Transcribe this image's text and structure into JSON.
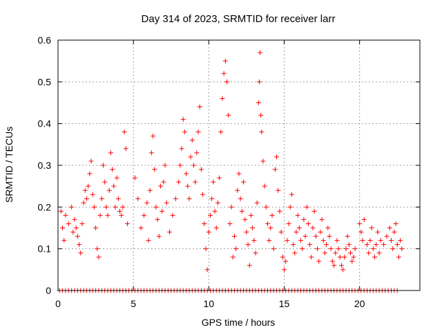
{
  "chart_data": {
    "type": "scatter",
    "title": "Day 314 of 2023, SRMTID for receiver larr",
    "xlabel": "GPS time / hours",
    "ylabel": "SRMTID / TECUs",
    "xlim": [
      0,
      24
    ],
    "ylim": [
      0,
      0.6
    ],
    "xticks": [
      0,
      5,
      10,
      15,
      20
    ],
    "xtick_labels": [
      "0",
      "5",
      "10",
      "15",
      "20"
    ],
    "yticks": [
      0,
      0.1,
      0.2,
      0.3,
      0.4,
      0.5,
      0.6
    ],
    "ytick_labels": [
      "0",
      "0.1",
      "0.2",
      "0.3",
      "0.4",
      "0.5",
      "0.6"
    ],
    "grid": true,
    "marker": "+",
    "color": "#ff0000",
    "series": [
      {
        "name": "SRMTID",
        "points": [
          [
            0.2,
            0.19
          ],
          [
            0.3,
            0.15
          ],
          [
            0.4,
            0.12
          ],
          [
            0.5,
            0.18
          ],
          [
            0.7,
            0.16
          ],
          [
            0.9,
            0.2
          ],
          [
            1.0,
            0.14
          ],
          [
            1.1,
            0.17
          ],
          [
            1.2,
            0.15
          ],
          [
            1.3,
            0.13
          ],
          [
            1.4,
            0.11
          ],
          [
            1.5,
            0.09
          ],
          [
            1.6,
            0.16
          ],
          [
            1.7,
            0.21
          ],
          [
            1.8,
            0.24
          ],
          [
            1.9,
            0.22
          ],
          [
            2.0,
            0.25
          ],
          [
            2.1,
            0.28
          ],
          [
            2.2,
            0.31
          ],
          [
            2.3,
            0.23
          ],
          [
            2.4,
            0.2
          ],
          [
            2.5,
            0.15
          ],
          [
            2.6,
            0.1
          ],
          [
            2.7,
            0.08
          ],
          [
            2.8,
            0.18
          ],
          [
            2.9,
            0.22
          ],
          [
            3.0,
            0.3
          ],
          [
            3.1,
            0.26
          ],
          [
            3.2,
            0.2
          ],
          [
            3.3,
            0.18
          ],
          [
            3.4,
            0.24
          ],
          [
            3.5,
            0.33
          ],
          [
            3.6,
            0.29
          ],
          [
            3.7,
            0.25
          ],
          [
            3.8,
            0.2
          ],
          [
            3.9,
            0.27
          ],
          [
            4.0,
            0.22
          ],
          [
            4.1,
            0.19
          ],
          [
            4.2,
            0.18
          ],
          [
            4.3,
            0.2
          ],
          [
            4.4,
            0.38
          ],
          [
            4.5,
            0.34
          ],
          [
            4.6,
            0.16
          ],
          [
            5.1,
            0.27
          ],
          [
            5.3,
            0.22
          ],
          [
            5.5,
            0.15
          ],
          [
            5.7,
            0.18
          ],
          [
            5.9,
            0.21
          ],
          [
            6.0,
            0.12
          ],
          [
            6.1,
            0.24
          ],
          [
            6.2,
            0.33
          ],
          [
            6.3,
            0.37
          ],
          [
            6.4,
            0.29
          ],
          [
            6.5,
            0.2
          ],
          [
            6.6,
            0.17
          ],
          [
            6.7,
            0.13
          ],
          [
            6.8,
            0.25
          ],
          [
            6.9,
            0.19
          ],
          [
            7.0,
            0.26
          ],
          [
            7.1,
            0.3
          ],
          [
            7.2,
            0.21
          ],
          [
            7.4,
            0.14
          ],
          [
            7.6,
            0.18
          ],
          [
            7.8,
            0.22
          ],
          [
            8.0,
            0.26
          ],
          [
            8.1,
            0.3
          ],
          [
            8.2,
            0.34
          ],
          [
            8.3,
            0.41
          ],
          [
            8.4,
            0.38
          ],
          [
            8.5,
            0.28
          ],
          [
            8.6,
            0.25
          ],
          [
            8.7,
            0.22
          ],
          [
            8.8,
            0.32
          ],
          [
            8.9,
            0.36
          ],
          [
            9.0,
            0.3
          ],
          [
            9.1,
            0.26
          ],
          [
            9.2,
            0.33
          ],
          [
            9.3,
            0.38
          ],
          [
            9.4,
            0.44
          ],
          [
            9.5,
            0.29
          ],
          [
            9.6,
            0.23
          ],
          [
            9.7,
            0.16
          ],
          [
            9.8,
            0.1
          ],
          [
            9.9,
            0.05
          ],
          [
            10.0,
            0.14
          ],
          [
            10.1,
            0.18
          ],
          [
            10.2,
            0.22
          ],
          [
            10.3,
            0.26
          ],
          [
            10.4,
            0.19
          ],
          [
            10.5,
            0.15
          ],
          [
            10.6,
            0.21
          ],
          [
            10.7,
            0.27
          ],
          [
            10.8,
            0.38
          ],
          [
            10.9,
            0.46
          ],
          [
            11.0,
            0.52
          ],
          [
            11.1,
            0.55
          ],
          [
            11.2,
            0.5
          ],
          [
            11.3,
            0.42
          ],
          [
            11.4,
            0.16
          ],
          [
            11.5,
            0.2
          ],
          [
            11.6,
            0.08
          ],
          [
            11.7,
            0.13
          ],
          [
            11.8,
            0.1
          ],
          [
            11.9,
            0.24
          ],
          [
            12.0,
            0.28
          ],
          [
            12.1,
            0.22
          ],
          [
            12.2,
            0.19
          ],
          [
            12.3,
            0.26
          ],
          [
            12.4,
            0.17
          ],
          [
            12.5,
            0.14
          ],
          [
            12.6,
            0.11
          ],
          [
            12.7,
            0.06
          ],
          [
            12.8,
            0.18
          ],
          [
            12.9,
            0.15
          ],
          [
            13.0,
            0.12
          ],
          [
            13.1,
            0.09
          ],
          [
            13.2,
            0.21
          ],
          [
            13.3,
            0.45
          ],
          [
            13.35,
            0.5
          ],
          [
            13.4,
            0.57
          ],
          [
            13.45,
            0.42
          ],
          [
            13.5,
            0.38
          ],
          [
            13.6,
            0.31
          ],
          [
            13.7,
            0.25
          ],
          [
            13.8,
            0.2
          ],
          [
            13.9,
            0.16
          ],
          [
            14.0,
            0.12
          ],
          [
            14.1,
            0.15
          ],
          [
            14.2,
            0.18
          ],
          [
            14.3,
            0.1
          ],
          [
            14.4,
            0.29
          ],
          [
            14.5,
            0.32
          ],
          [
            14.6,
            0.24
          ],
          [
            14.7,
            0.19
          ],
          [
            14.8,
            0.14
          ],
          [
            14.9,
            0.08
          ],
          [
            15.0,
            0.05
          ],
          [
            15.1,
            0.07
          ],
          [
            15.2,
            0.12
          ],
          [
            15.3,
            0.16
          ],
          [
            15.4,
            0.2
          ],
          [
            15.5,
            0.23
          ],
          [
            15.6,
            0.11
          ],
          [
            15.7,
            0.09
          ],
          [
            15.8,
            0.14
          ],
          [
            15.9,
            0.18
          ],
          [
            16.0,
            0.15
          ],
          [
            16.1,
            0.12
          ],
          [
            16.2,
            0.1
          ],
          [
            16.3,
            0.17
          ],
          [
            16.4,
            0.13
          ],
          [
            16.5,
            0.2
          ],
          [
            16.6,
            0.16
          ],
          [
            16.7,
            0.11
          ],
          [
            16.8,
            0.08
          ],
          [
            16.9,
            0.15
          ],
          [
            17.0,
            0.19
          ],
          [
            17.1,
            0.13
          ],
          [
            17.2,
            0.1
          ],
          [
            17.3,
            0.07
          ],
          [
            17.4,
            0.14
          ],
          [
            17.5,
            0.17
          ],
          [
            17.6,
            0.12
          ],
          [
            17.7,
            0.09
          ],
          [
            17.8,
            0.11
          ],
          [
            17.9,
            0.15
          ],
          [
            18.0,
            0.13
          ],
          [
            18.1,
            0.1
          ],
          [
            18.2,
            0.07
          ],
          [
            18.3,
            0.06
          ],
          [
            18.4,
            0.09
          ],
          [
            18.5,
            0.12
          ],
          [
            18.6,
            0.1
          ],
          [
            18.7,
            0.08
          ],
          [
            18.8,
            0.06
          ],
          [
            18.9,
            0.05
          ],
          [
            19.0,
            0.08
          ],
          [
            19.1,
            0.1
          ],
          [
            19.2,
            0.13
          ],
          [
            19.3,
            0.11
          ],
          [
            19.4,
            0.09
          ],
          [
            19.5,
            0.07
          ],
          [
            19.6,
            0.08
          ],
          [
            19.7,
            0.1
          ],
          [
            20.0,
            0.16
          ],
          [
            20.1,
            0.14
          ],
          [
            20.2,
            0.12
          ],
          [
            20.3,
            0.17
          ],
          [
            20.5,
            0.11
          ],
          [
            20.6,
            0.09
          ],
          [
            20.7,
            0.12
          ],
          [
            20.8,
            0.15
          ],
          [
            20.9,
            0.1
          ],
          [
            21.0,
            0.08
          ],
          [
            21.1,
            0.11
          ],
          [
            21.2,
            0.14
          ],
          [
            21.3,
            0.09
          ],
          [
            21.4,
            0.12
          ],
          [
            21.6,
            0.11
          ],
          [
            21.8,
            0.13
          ],
          [
            22.0,
            0.15
          ],
          [
            22.1,
            0.12
          ],
          [
            22.2,
            0.1
          ],
          [
            22.3,
            0.14
          ],
          [
            22.4,
            0.16
          ],
          [
            22.5,
            0.11
          ],
          [
            22.6,
            0.08
          ],
          [
            22.7,
            0.12
          ],
          [
            22.8,
            0.1
          ]
        ]
      }
    ],
    "zero_points_x": [
      0.1,
      0.3,
      0.5,
      0.7,
      0.9,
      1.1,
      1.3,
      1.5,
      1.7,
      1.9,
      2.1,
      2.3,
      2.5,
      2.7,
      2.9,
      3.1,
      3.3,
      3.5,
      3.7,
      3.9,
      4.1,
      4.3,
      4.5,
      4.7,
      4.9,
      5.1,
      5.3,
      5.5,
      5.7,
      5.9,
      6.1,
      6.3,
      6.5,
      6.7,
      6.9,
      7.1,
      7.3,
      7.5,
      7.7,
      7.9,
      8.1,
      8.3,
      8.5,
      8.7,
      8.9,
      9.1,
      9.3,
      9.5,
      9.7,
      9.9,
      10.1,
      10.3,
      10.5,
      10.7,
      10.9,
      11.1,
      11.3,
      11.5,
      11.7,
      11.9,
      12.1,
      12.3,
      12.5,
      12.7,
      12.9,
      13.1,
      13.3,
      13.5,
      13.7,
      13.9,
      14.1,
      14.3,
      14.5,
      14.7,
      14.9,
      15.1,
      15.3,
      15.5,
      15.7,
      15.9,
      16.1,
      16.3,
      16.5,
      16.7,
      16.9,
      17.1,
      17.3,
      17.5,
      17.7,
      17.9,
      18.1,
      18.3,
      18.5,
      18.7,
      18.9,
      19.1,
      19.3,
      19.5,
      19.7,
      19.9,
      20.1,
      20.3,
      20.5,
      20.7,
      20.9,
      21.1,
      21.3,
      21.5,
      21.7,
      21.9,
      22.1,
      22.3,
      22.5
    ]
  }
}
